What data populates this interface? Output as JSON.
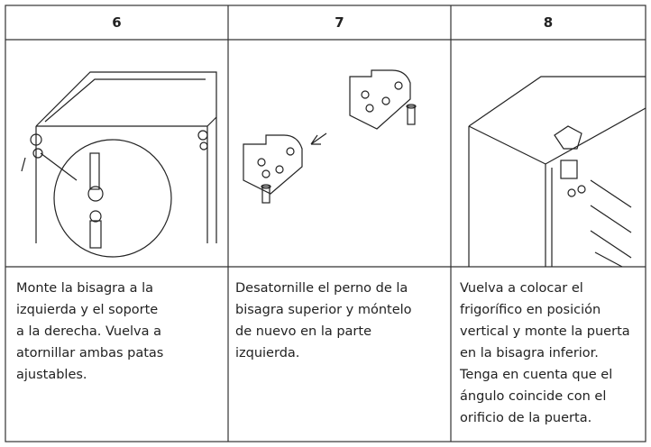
{
  "table": {
    "headers": [
      "6",
      "7",
      "8"
    ],
    "cells": [
      [
        "Monte la bisagra a la",
        "izquierda y el soporte",
        "a la derecha. Vuelva a",
        "atornillar ambas patas",
        "ajustables."
      ],
      [
        "Desatornille el perno de la",
        "bisagra superior y móntelo",
        "de nuevo en la parte",
        "izquierda."
      ],
      [
        "Vuelva a colocar el",
        "frigorífico en posición",
        "vertical y monte la puerta",
        "en la bisagra inferior.",
        "Tenga en cuenta que el",
        "ángulo coincide con el",
        "orificio de la puerta."
      ]
    ]
  }
}
